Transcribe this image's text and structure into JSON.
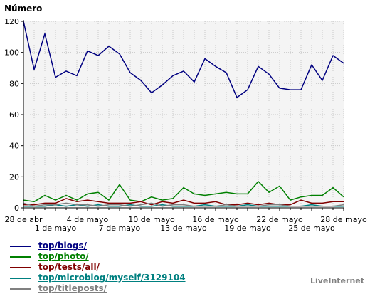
{
  "chart_data": {
    "type": "line",
    "ylabel": "Número",
    "ylim": [
      0,
      120
    ],
    "yticks": [
      0,
      20,
      40,
      60,
      80,
      100,
      120
    ],
    "grid": true,
    "x_tick_labels_upper": [
      {
        "i": 0,
        "label": "28 de abr"
      },
      {
        "i": 6,
        "label": "4 de mayo"
      },
      {
        "i": 12,
        "label": "10 de mayo"
      },
      {
        "i": 18,
        "label": "16 de mayo"
      },
      {
        "i": 24,
        "label": "22 de mayo"
      },
      {
        "i": 30,
        "label": "28 de mayo"
      }
    ],
    "x_tick_labels_lower": [
      {
        "i": 3,
        "label": "1 de mayo"
      },
      {
        "i": 9,
        "label": "7 de mayo"
      },
      {
        "i": 15,
        "label": "13 de mayo"
      },
      {
        "i": 21,
        "label": "19 de mayo"
      },
      {
        "i": 27,
        "label": "25 de mayo"
      }
    ],
    "series": [
      {
        "name": "top/blogs/",
        "color": "#000080",
        "values": [
          120,
          89,
          112,
          84,
          88,
          85,
          101,
          98,
          104,
          99,
          87,
          82,
          74,
          79,
          85,
          88,
          81,
          96,
          91,
          87,
          71,
          76,
          91,
          86,
          77,
          76,
          76,
          92,
          82,
          98,
          93
        ]
      },
      {
        "name": "top/photo/",
        "color": "#008000",
        "values": [
          5,
          4,
          8,
          5,
          8,
          5,
          9,
          10,
          5,
          15,
          5,
          4,
          7,
          5,
          6,
          13,
          9,
          8,
          9,
          10,
          9,
          9,
          17,
          10,
          14,
          5,
          7,
          8,
          8,
          13,
          7
        ]
      },
      {
        "name": "top/tests/all/",
        "color": "#800000",
        "values": [
          2,
          2,
          3,
          3,
          6,
          4,
          5,
          4,
          3,
          3,
          3,
          4,
          2,
          4,
          3,
          5,
          3,
          3,
          4,
          2,
          2,
          3,
          2,
          3,
          2,
          2,
          5,
          3,
          3,
          4,
          4
        ]
      },
      {
        "name": "top/microblog/myself/3129104",
        "color": "#008080",
        "values": [
          1,
          1,
          1,
          2,
          1,
          2,
          1,
          2,
          1,
          1,
          2,
          1,
          1,
          2,
          1,
          1,
          1,
          2,
          1,
          1,
          1,
          2,
          1,
          1,
          1,
          1,
          1,
          2,
          1,
          1,
          1
        ]
      },
      {
        "name": "top/titleposts/",
        "color": "#808080",
        "values": [
          3,
          1,
          2,
          2,
          3,
          2,
          2,
          1,
          2,
          2,
          1,
          2,
          3,
          1,
          2,
          2,
          1,
          1,
          1,
          2,
          1,
          1,
          1,
          2,
          2,
          1,
          1,
          1,
          1,
          1,
          2
        ]
      }
    ]
  },
  "credit": "LiveInternet"
}
